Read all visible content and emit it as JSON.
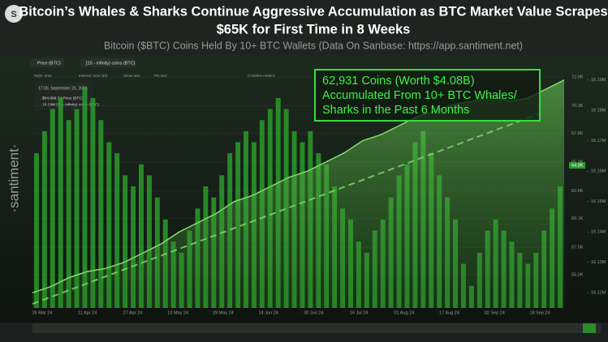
{
  "chart_data": {
    "type": "bar-area",
    "title": [
      "Bitcoin’s Whales & Sharks Continue Aggressive Accumulation as BTC Market Value Scrapes",
      "$65K for First Time in 8 Weeks"
    ],
    "subtitle": "Bitcoin ($BTC) Coins Held By 10+ BTC Wallets (Data On Sanbase: https://app.santiment.net)",
    "watermark": "·santiment·",
    "legend_chips": [
      "Price (BTC)",
      "[10 - infinity) coins (BTC)"
    ],
    "toolbar": [
      "Style: Area",
      "Interval: Auto (4h)",
      "Show axis",
      "Pin axis",
      "Combine metrics"
    ],
    "tooltip": [
      "17:00, September 25, 2024",
      "$64,699.74 Price (BTC)",
      "16.19M [10 - infinity) coins (BTC)"
    ],
    "annotation": [
      "62,931 Coins (Worth $4.08B)",
      "Accumulated From 10+ BTC Whales/",
      "Sharks in the Past 6 Months"
    ],
    "xtick_labels": [
      "26 Mar 24",
      "11 Apr 24",
      "27 Apr 24",
      "13 May 24",
      "29 May 24",
      "14 Jun 24",
      "30 Jun 24",
      "16 Jul 24",
      "01 Aug 24",
      "17 Aug 24",
      "02 Sep 24",
      "18 Sep 24"
    ],
    "series": [
      {
        "name": "Price (BTC)",
        "color": "#2c9a2c",
        "axis": "y",
        "values": [
          66000,
          68000,
          70000,
          71000,
          69000,
          70000,
          72000,
          71000,
          69000,
          67000,
          66000,
          64000,
          63000,
          65000,
          64000,
          62000,
          60000,
          58000,
          57000,
          59000,
          61000,
          63000,
          62000,
          64000,
          66000,
          67000,
          68000,
          67000,
          69000,
          70000,
          71000,
          70000,
          68000,
          67000,
          68000,
          66000,
          65000,
          63000,
          61000,
          60000,
          58000,
          57000,
          59000,
          60000,
          62000,
          64000,
          65000,
          67000,
          68000,
          66000,
          64000,
          62000,
          60000,
          56000,
          54000,
          57000,
          59000,
          60000,
          59000,
          58000,
          57000,
          56000,
          57000,
          59000,
          61000,
          63000
        ]
      },
      {
        "name": "[10 - infinity) coins (BTC)",
        "color": "#7ee06a",
        "axis": "y2",
        "values": [
          16.12,
          16.122,
          16.125,
          16.127,
          16.128,
          16.13,
          16.133,
          16.136,
          16.14,
          16.143,
          16.146,
          16.15,
          16.152,
          16.155,
          16.158,
          16.16,
          16.163,
          16.166,
          16.17,
          16.172,
          16.175,
          16.178,
          16.18,
          16.182,
          16.183,
          16.185,
          16.183,
          16.184,
          16.187,
          16.19
        ]
      }
    ],
    "ylim": [
      52000,
      74000
    ],
    "yticks": [
      {
        "value": 72900,
        "label": "72.9K"
      },
      {
        "value": 70300,
        "label": "70.3K"
      },
      {
        "value": 67800,
        "label": "67.8K"
      },
      {
        "value": 65200,
        "label": "65.2K"
      },
      {
        "value": 62600,
        "label": "62.6K"
      },
      {
        "value": 60100,
        "label": "60.1K"
      },
      {
        "value": 57500,
        "label": "57.5K"
      },
      {
        "value": 55000,
        "label": "55.0K"
      }
    ],
    "y2lim": [
      16.115,
      16.195
    ],
    "y2ticks": [
      {
        "value": 16.19,
        "label": "16.19M"
      },
      {
        "value": 16.18,
        "label": "16.18M"
      },
      {
        "value": 16.17,
        "label": "16.17M"
      },
      {
        "value": 16.16,
        "label": "16.16M"
      },
      {
        "value": 16.15,
        "label": "16.15M"
      },
      {
        "value": 16.14,
        "label": "16.14M"
      },
      {
        "value": 16.13,
        "label": "16.13M"
      },
      {
        "value": 16.12,
        "label": "16.12M"
      }
    ],
    "current_price": {
      "value": 64900,
      "label": "64.9K"
    }
  }
}
